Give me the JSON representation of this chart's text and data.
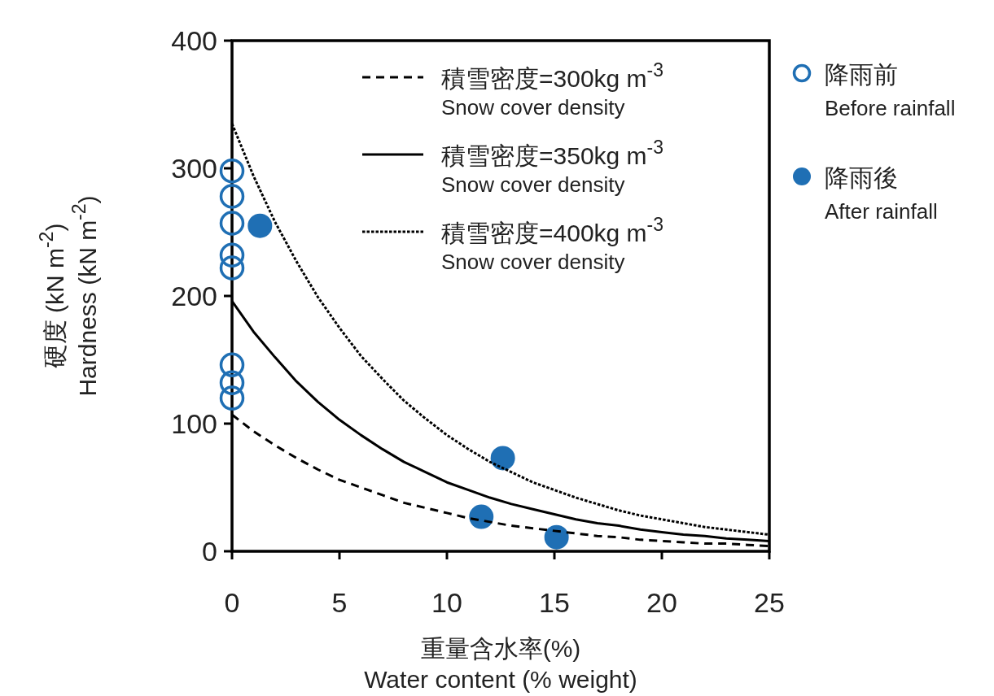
{
  "chart_data": {
    "type": "line",
    "xlabel": "重量含水率(%)\nWater content (% weight)",
    "ylabel": "硬度 (kN m$^{-2}$)\nHardness (kN m$^{-2}$)",
    "xlim": [
      0,
      25
    ],
    "xticks": [
      0,
      5,
      10,
      15,
      20,
      25
    ],
    "ylim": [
      0,
      400
    ],
    "yticks": [
      0,
      100,
      200,
      300,
      400
    ],
    "grid": false,
    "legend": "top right",
    "series": [
      {
        "name": "積雪密度=300kg m$^{-3}$\nSnow cover density",
        "type": "line",
        "line_style": "dashed",
        "color": "#000000",
        "x": [
          0,
          1,
          2,
          3,
          4,
          5,
          6,
          7,
          8,
          9,
          10,
          11,
          12,
          13,
          14,
          15,
          16,
          17,
          18,
          19,
          20,
          21,
          22,
          23,
          24,
          25
        ],
        "values": [
          107,
          94,
          83,
          73,
          64,
          56,
          50,
          44,
          38,
          34,
          30,
          26,
          23,
          20,
          18,
          16,
          14,
          12,
          11,
          9,
          8,
          7,
          6,
          6,
          5,
          4
        ]
      },
      {
        "name": "積雪密度=350kg m$^{-3}$\nSnow cover density",
        "type": "line",
        "line_style": "solid",
        "color": "#000000",
        "x": [
          0,
          1,
          2,
          3,
          4,
          5,
          6,
          7,
          8,
          9,
          10,
          11,
          12,
          13,
          14,
          15,
          16,
          17,
          18,
          19,
          20,
          21,
          22,
          23,
          24,
          25
        ],
        "values": [
          196,
          172,
          152,
          133,
          117,
          103,
          91,
          80,
          70,
          62,
          54,
          48,
          42,
          37,
          33,
          29,
          25,
          22,
          20,
          17,
          15,
          13,
          12,
          10,
          9,
          8
        ]
      },
      {
        "name": "積雪密度=400kg m$^{-3}$\nSnow cover density",
        "type": "line",
        "line_style": "dotted",
        "color": "#000000",
        "x": [
          0,
          1,
          2,
          3,
          4,
          5,
          6,
          7,
          8,
          9,
          10,
          11,
          12,
          13,
          14,
          15,
          16,
          17,
          18,
          19,
          20,
          21,
          22,
          23,
          24,
          25
        ],
        "values": [
          335,
          294,
          258,
          227,
          199,
          175,
          153,
          135,
          118,
          104,
          91,
          80,
          70,
          62,
          54,
          48,
          42,
          37,
          32,
          28,
          25,
          22,
          19,
          17,
          15,
          13
        ]
      },
      {
        "name": "降雨前\nBefore rainfall",
        "type": "scatter",
        "marker": "circle-open",
        "color": "#1f6fb4",
        "x": [
          0,
          0,
          0,
          0,
          0,
          0,
          0,
          0
        ],
        "values": [
          298,
          278,
          257,
          232,
          222,
          146,
          132,
          120
        ]
      },
      {
        "name": "降雨後\nAfter rainfall",
        "type": "scatter",
        "marker": "circle",
        "color": "#1f6fb4",
        "x": [
          1.3,
          12.6,
          11.6,
          15.1
        ],
        "values": [
          255,
          73,
          27,
          11
        ]
      }
    ]
  }
}
